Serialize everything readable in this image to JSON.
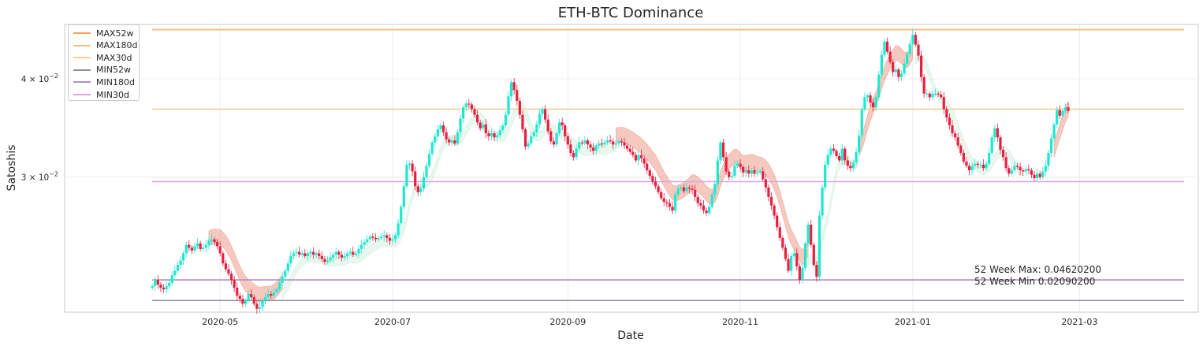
{
  "chart_data": {
    "type": "candlestick",
    "title": "ETH-BTC Dominance",
    "xlabel": "Date",
    "ylabel": "Satoshis",
    "y_scale": "log",
    "ylim": [
      0.0202,
      0.0469
    ],
    "x_range": [
      "2020-03-07",
      "2021-04-12"
    ],
    "x_ticks": [
      {
        "date": "2020-05-01",
        "label": "2020-05"
      },
      {
        "date": "2020-07-01",
        "label": "2020-07"
      },
      {
        "date": "2020-09-01",
        "label": "2020-09"
      },
      {
        "date": "2020-11-01",
        "label": "2020-11"
      },
      {
        "date": "2021-01-01",
        "label": "2021-01"
      },
      {
        "date": "2021-03-01",
        "label": "2021-03"
      }
    ],
    "y_ticks": [
      {
        "value": 0.03,
        "base": "3 × 10",
        "exp": "−2"
      },
      {
        "value": 0.04,
        "base": "4 × 10",
        "exp": "−2"
      }
    ],
    "grid": true,
    "legend_position": "top-left",
    "colors": {
      "up": "#1de9cf",
      "down": "#e8203f",
      "band_down": "#e98870",
      "band_up": "#b5e8c8"
    },
    "candles_start": "2020-04-07",
    "series_close_daily": [
      0.0218,
      0.0222,
      0.0219,
      0.0217,
      0.0216,
      0.0218,
      0.022,
      0.0225,
      0.0228,
      0.0232,
      0.0235,
      0.024,
      0.0246,
      0.0244,
      0.0242,
      0.0245,
      0.0247,
      0.0243,
      0.0244,
      0.0246,
      0.0249,
      0.025,
      0.0248,
      0.0245,
      0.024,
      0.0233,
      0.0229,
      0.0226,
      0.0222,
      0.0217,
      0.0212,
      0.021,
      0.0207,
      0.0209,
      0.0213,
      0.0211,
      0.0207,
      0.0204,
      0.0205,
      0.0209,
      0.0211,
      0.0213,
      0.0212,
      0.0214,
      0.0216,
      0.022,
      0.0224,
      0.0228,
      0.0233,
      0.0238,
      0.024,
      0.0241,
      0.0239,
      0.024,
      0.0238,
      0.024,
      0.0241,
      0.0239,
      0.024,
      0.0238,
      0.0236,
      0.0234,
      0.0235,
      0.0237,
      0.0239,
      0.0241,
      0.0239,
      0.0237,
      0.0238,
      0.024,
      0.0241,
      0.0239,
      0.024,
      0.0243,
      0.0246,
      0.0248,
      0.025,
      0.0252,
      0.0251,
      0.025,
      0.0251,
      0.0252,
      0.0253,
      0.0251,
      0.0249,
      0.025,
      0.0253,
      0.0262,
      0.0275,
      0.0292,
      0.0311,
      0.0312,
      0.0305,
      0.0292,
      0.0287,
      0.029,
      0.03,
      0.031,
      0.0321,
      0.0332,
      0.0338,
      0.0345,
      0.0349,
      0.0342,
      0.0335,
      0.0332,
      0.0334,
      0.0331,
      0.0342,
      0.0356,
      0.0368,
      0.0372,
      0.0371,
      0.0366,
      0.036,
      0.0352,
      0.0346,
      0.035,
      0.0341,
      0.0338,
      0.0341,
      0.0337,
      0.0339,
      0.0344,
      0.0349,
      0.036,
      0.038,
      0.0396,
      0.0387,
      0.0375,
      0.036,
      0.0345,
      0.0328,
      0.0331,
      0.0338,
      0.0342,
      0.035,
      0.0361,
      0.0366,
      0.0355,
      0.0343,
      0.0333,
      0.033,
      0.0341,
      0.0352,
      0.0349,
      0.0338,
      0.033,
      0.0322,
      0.0318,
      0.0326,
      0.0332,
      0.0331,
      0.0334,
      0.033,
      0.0327,
      0.0324,
      0.0329,
      0.0331,
      0.033,
      0.0332,
      0.0334,
      0.0333,
      0.033,
      0.0331,
      0.0333,
      0.0332,
      0.0329,
      0.0326,
      0.0323,
      0.032,
      0.0315,
      0.032,
      0.0317,
      0.0312,
      0.0306,
      0.0301,
      0.0296,
      0.0292,
      0.0287,
      0.0282,
      0.0279,
      0.0278,
      0.0275,
      0.0272,
      0.0285,
      0.029,
      0.0291,
      0.0288,
      0.0291,
      0.029,
      0.0289,
      0.0283,
      0.0278,
      0.0276,
      0.0272,
      0.027,
      0.0275,
      0.0285,
      0.0294,
      0.0315,
      0.0332,
      0.0318,
      0.0305,
      0.03,
      0.0301,
      0.031,
      0.0312,
      0.0309,
      0.0304,
      0.0306,
      0.0303,
      0.0306,
      0.0303,
      0.0304,
      0.0305,
      0.0298,
      0.0291,
      0.0283,
      0.0276,
      0.0268,
      0.0259,
      0.0251,
      0.0244,
      0.0236,
      0.0228,
      0.0238,
      0.024,
      0.0231,
      0.0222,
      0.023,
      0.0247,
      0.0261,
      0.0246,
      0.0232,
      0.0224,
      0.0268,
      0.0291,
      0.0311,
      0.032,
      0.0326,
      0.0324,
      0.0319,
      0.0315,
      0.0326,
      0.0315,
      0.031,
      0.0308,
      0.0313,
      0.0323,
      0.0339,
      0.0366,
      0.0379,
      0.0381,
      0.0373,
      0.0368,
      0.0379,
      0.0405,
      0.0429,
      0.0446,
      0.0433,
      0.042,
      0.0408,
      0.0411,
      0.0402,
      0.0406,
      0.0418,
      0.043,
      0.0443,
      0.0455,
      0.0442,
      0.0428,
      0.0402,
      0.0383,
      0.0383,
      0.0379,
      0.0383,
      0.0383,
      0.0382,
      0.0379,
      0.0366,
      0.0357,
      0.0349,
      0.0341,
      0.0337,
      0.0329,
      0.0322,
      0.0314,
      0.031,
      0.0306,
      0.031,
      0.0312,
      0.0311,
      0.0311,
      0.0308,
      0.0312,
      0.0322,
      0.0337,
      0.0346,
      0.0337,
      0.0325,
      0.0318,
      0.0308,
      0.0303,
      0.0306,
      0.031,
      0.0309,
      0.0306,
      0.0305,
      0.0307,
      0.0306,
      0.0302,
      0.0299,
      0.0303,
      0.03,
      0.0305,
      0.031,
      0.0322,
      0.0336,
      0.035,
      0.0365,
      0.0359,
      0.0364,
      0.0368,
      0.0364
    ],
    "band_segments": [
      {
        "from": "2020-04-27",
        "to": "2020-05-23",
        "kind": "down"
      },
      {
        "from": "2020-05-23",
        "to": "2020-06-30",
        "kind": "up"
      },
      {
        "from": "2020-06-30",
        "to": "2020-09-01",
        "kind": "up"
      },
      {
        "from": "2020-09-01",
        "to": "2020-09-18",
        "kind": "up"
      },
      {
        "from": "2020-09-18",
        "to": "2020-11-25",
        "kind": "down"
      },
      {
        "from": "2020-11-25",
        "to": "2020-12-13",
        "kind": "up"
      },
      {
        "from": "2020-12-13",
        "to": "2021-01-01",
        "kind": "down"
      },
      {
        "from": "2021-01-02",
        "to": "2021-02-08",
        "kind": "up"
      },
      {
        "from": "2021-02-20",
        "to": "2021-04-07",
        "kind": "down"
      }
    ],
    "horizontal_lines": [
      {
        "name": "MAX52w",
        "value": 0.0462,
        "color": "#f4a261"
      },
      {
        "name": "MAX180d",
        "value": 0.0462,
        "color": "#f6bd86"
      },
      {
        "name": "MAX30d",
        "value": 0.0366,
        "color": "#f7cf95"
      },
      {
        "name": "MIN52w",
        "value": 0.0209,
        "color": "#8e8aa0"
      },
      {
        "name": "MIN180d",
        "value": 0.0222,
        "color": "#b08fc6"
      },
      {
        "name": "MIN30d",
        "value": 0.0296,
        "color": "#d9a6df"
      }
    ],
    "lines_span": [
      "2020-04-07",
      "2021-04-07"
    ],
    "annotations": [
      "52 Week Max: 0.04620200",
      "52 Week Min 0.02090200"
    ]
  }
}
